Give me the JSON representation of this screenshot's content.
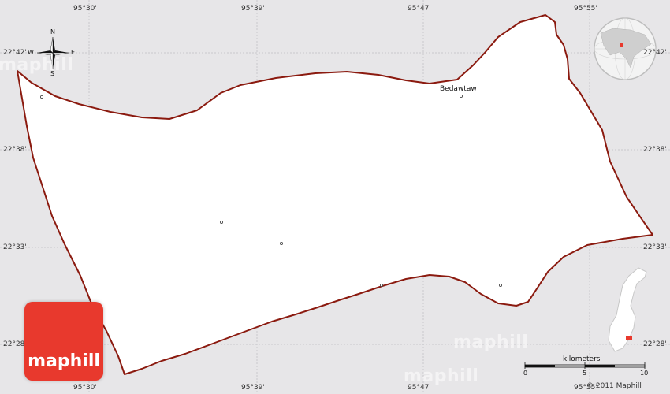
{
  "map": {
    "longitude_labels": [
      "95°30'",
      "95°39'",
      "95°47'",
      "95°55'"
    ],
    "latitude_labels": [
      "22°42'",
      "22°38'",
      "22°33'",
      "22°28'"
    ],
    "place_names": [
      "Bedawtaw"
    ],
    "watermark_text": "maphill",
    "compass": {
      "north": "N",
      "south": "S",
      "east": "E",
      "west": "W"
    },
    "scale": {
      "title": "kilometers",
      "ticks": [
        "0",
        "5",
        "10"
      ]
    },
    "copyright": "© 2011 Maphill",
    "colors": {
      "background": "#e7e6e8",
      "land": "#ffffff",
      "border": "#8b1a0f",
      "logo": "#e8392d",
      "grid": "#c8c8cc"
    }
  }
}
